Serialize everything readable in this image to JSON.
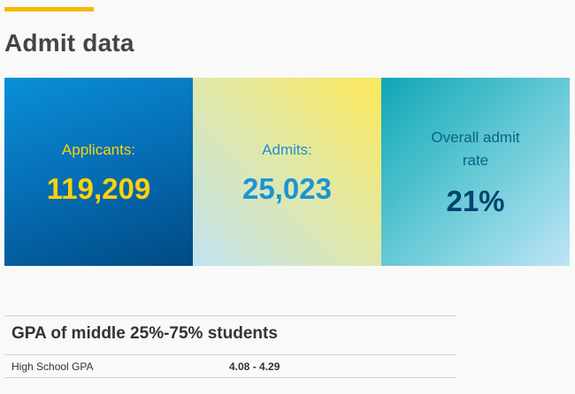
{
  "page": {
    "title": "Admit data"
  },
  "stats": {
    "applicants": {
      "label": "Applicants:",
      "value": "119,209"
    },
    "admits": {
      "label": "Admits:",
      "value": "25,023"
    },
    "admit_rate": {
      "label": "Overall admit rate",
      "value": "21%"
    }
  },
  "gpa": {
    "heading": "GPA of middle 25%-75% students",
    "rows": [
      {
        "label": "High School GPA",
        "value": "4.08 - 4.29"
      }
    ]
  },
  "colors": {
    "accent": "#f5b800",
    "applicants_text": "#fdd20a",
    "admits_text": "#1b94d2",
    "rate_value_text": "#00446f"
  }
}
